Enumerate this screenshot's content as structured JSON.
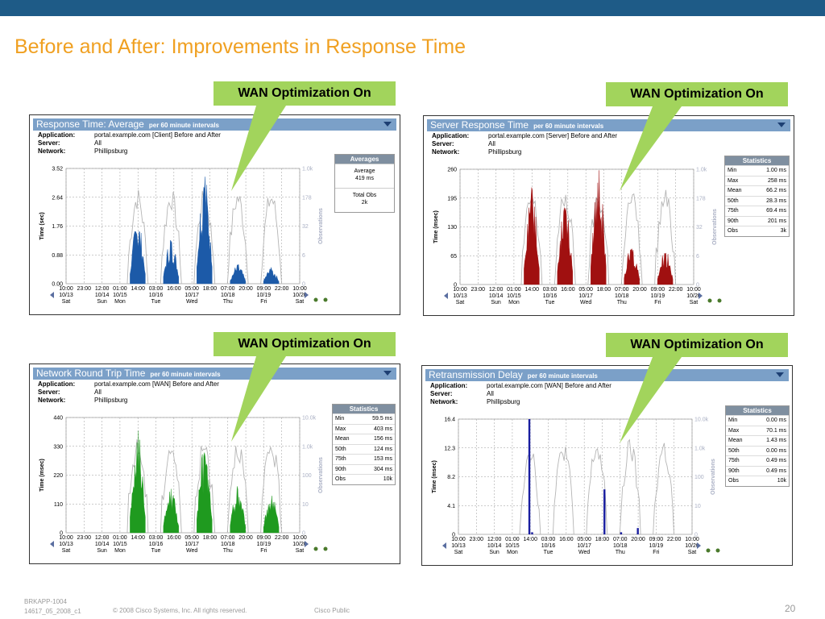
{
  "slide": {
    "title": "Before and After: Improvements in Response Time",
    "footer_code_line1": "BRKAPP-1004",
    "footer_code_line2": "14617_05_2008_c1",
    "footer_copyright": "© 2008 Cisco Systems, Inc. All rights reserved.",
    "footer_classification": "Cisco Public",
    "page_number": "20",
    "callout_text": "WAN Optimization On",
    "colors": {
      "topbar": "#1e5b87",
      "title": "#f0a021",
      "callout": "#a2d45c"
    }
  },
  "chart_data": [
    {
      "type": "area",
      "title": "Response Time: Average",
      "subtitle": "per 60 minute intervals",
      "meta": [
        {
          "key": "Application:",
          "value": "portal.example.com [Client] Before and After"
        },
        {
          "key": "Server:",
          "value": "All"
        },
        {
          "key": "Network:",
          "value": "Phillipsburg"
        }
      ],
      "ylabel": "Time (sec)",
      "y2label": "Observations",
      "yticks": [
        "3.52",
        "2.64",
        "1.76",
        "0.88",
        "0.00"
      ],
      "y2ticks": [
        "1.0k",
        "178",
        "32",
        "6",
        "0"
      ],
      "ylim": [
        0,
        3.52
      ],
      "x_tick_times": [
        "10:00",
        "23:00",
        "12:00",
        "01:00",
        "14:00",
        "03:00",
        "16:00",
        "05:00",
        "18:00",
        "07:00",
        "20:00",
        "09:00",
        "22:00",
        "10:00"
      ],
      "x_tick_dates": [
        "10/13",
        "",
        "10/14",
        "10/15",
        "",
        "10/16",
        "",
        "10/17",
        "",
        "10/18",
        "",
        "10/19",
        "",
        "10/20"
      ],
      "x_tick_days": [
        "Sat",
        "",
        "Sun",
        "Mon",
        "",
        "Tue",
        "",
        "Wed",
        "",
        "Thu",
        "",
        "Fri",
        "",
        "Sat"
      ],
      "series_color": "#1c5aa8",
      "peaks": [
        {
          "day": "10/15",
          "max": 2.0
        },
        {
          "day": "10/16",
          "max": 1.4
        },
        {
          "day": "10/17",
          "max": 3.4
        },
        {
          "day": "10/18",
          "max": 0.6
        },
        {
          "day": "10/19",
          "max": 0.5
        }
      ],
      "stats_title": "Averages",
      "averages": [
        {
          "label": "Average",
          "value": "419 ms"
        },
        {
          "label": "Total Obs",
          "value": "2k"
        }
      ]
    },
    {
      "type": "area",
      "title": "Server Response Time",
      "subtitle": "per 60 minute intervals",
      "meta": [
        {
          "key": "Application:",
          "value": "portal.example.com [Server] Before and After"
        },
        {
          "key": "Server:",
          "value": "All"
        },
        {
          "key": "Network:",
          "value": "Phillipsburg"
        }
      ],
      "ylabel": "Time (msec)",
      "y2label": "Observations",
      "yticks": [
        "260",
        "195",
        "130",
        "65",
        "0"
      ],
      "y2ticks": [
        "1.0k",
        "178",
        "32",
        "6",
        "0"
      ],
      "ylim": [
        0,
        260
      ],
      "x_tick_times": [
        "10:00",
        "23:00",
        "12:00",
        "01:00",
        "14:00",
        "03:00",
        "16:00",
        "05:00",
        "18:00",
        "07:00",
        "20:00",
        "09:00",
        "22:00",
        "10:00"
      ],
      "x_tick_dates": [
        "10/13",
        "",
        "10/14",
        "10/15",
        "",
        "10/16",
        "",
        "10/17",
        "",
        "10/18",
        "",
        "10/19",
        "",
        "10/20"
      ],
      "x_tick_days": [
        "Sat",
        "",
        "Sun",
        "Mon",
        "",
        "Tue",
        "",
        "Wed",
        "",
        "Thu",
        "",
        "Fri",
        "",
        "Sat"
      ],
      "series_color": "#a01010",
      "peaks": [
        {
          "day": "10/15",
          "max": 240
        },
        {
          "day": "10/16",
          "max": 190
        },
        {
          "day": "10/17",
          "max": 258
        },
        {
          "day": "10/18",
          "max": 90
        },
        {
          "day": "10/19",
          "max": 80
        }
      ],
      "stats_title": "Statistics",
      "stats": [
        {
          "label": "Min",
          "value": "1.00 ms"
        },
        {
          "label": "Max",
          "value": "258 ms"
        },
        {
          "label": "Mean",
          "value": "66.2 ms"
        },
        {
          "label": "50th",
          "value": "28.3 ms"
        },
        {
          "label": "75th",
          "value": "69.4 ms"
        },
        {
          "label": "90th",
          "value": "201 ms"
        },
        {
          "label": "Obs",
          "value": "3k"
        }
      ]
    },
    {
      "type": "area",
      "title": "Network Round Trip Time",
      "subtitle": "per 60 minute intervals",
      "meta": [
        {
          "key": "Application:",
          "value": "portal.example.com [WAN] Before and After"
        },
        {
          "key": "Server:",
          "value": "All"
        },
        {
          "key": "Network:",
          "value": "Phillipsburg"
        }
      ],
      "ylabel": "Time (msec)",
      "y2label": "Observations",
      "yticks": [
        "440",
        "330",
        "220",
        "110",
        "0"
      ],
      "y2ticks": [
        "10.0k",
        "1.0k",
        "100",
        "10",
        "0"
      ],
      "ylim": [
        0,
        440
      ],
      "x_tick_times": [
        "10:00",
        "23:00",
        "12:00",
        "01:00",
        "14:00",
        "03:00",
        "16:00",
        "05:00",
        "18:00",
        "07:00",
        "20:00",
        "09:00",
        "22:00",
        "10:00"
      ],
      "x_tick_dates": [
        "10/13",
        "",
        "10/14",
        "10/15",
        "",
        "10/16",
        "",
        "10/17",
        "",
        "10/18",
        "",
        "10/19",
        "",
        "10/20"
      ],
      "x_tick_days": [
        "Sat",
        "",
        "Sun",
        "Mon",
        "",
        "Tue",
        "",
        "Wed",
        "",
        "Thu",
        "",
        "Fri",
        "",
        "Sat"
      ],
      "series_color": "#1f9a1f",
      "peaks": [
        {
          "day": "10/15",
          "max": 400
        },
        {
          "day": "10/16",
          "max": 170
        },
        {
          "day": "10/17",
          "max": 330
        },
        {
          "day": "10/18",
          "max": 180
        },
        {
          "day": "10/19",
          "max": 150
        }
      ],
      "stats_title": "Statistics",
      "stats": [
        {
          "label": "Min",
          "value": "59.5 ms"
        },
        {
          "label": "Max",
          "value": "403 ms"
        },
        {
          "label": "Mean",
          "value": "156 ms"
        },
        {
          "label": "50th",
          "value": "124 ms"
        },
        {
          "label": "75th",
          "value": "153 ms"
        },
        {
          "label": "90th",
          "value": "304 ms"
        },
        {
          "label": "Obs",
          "value": "10k"
        }
      ]
    },
    {
      "type": "area",
      "title": "Retransmission Delay",
      "subtitle": "per 60 minute intervals",
      "meta": [
        {
          "key": "Application:",
          "value": "portal.example.com [WAN] Before and After"
        },
        {
          "key": "Server:",
          "value": "All"
        },
        {
          "key": "Network:",
          "value": "Phillipsburg"
        }
      ],
      "ylabel": "Time (msec)",
      "y2label": "Observations",
      "yticks": [
        "16.4",
        "12.3",
        "8.2",
        "4.1",
        "0"
      ],
      "y2ticks": [
        "10.0k",
        "1.0k",
        "100",
        "10",
        "0"
      ],
      "ylim": [
        0,
        16.4
      ],
      "x_tick_times": [
        "10:00",
        "23:00",
        "12:00",
        "01:00",
        "14:00",
        "03:00",
        "16:00",
        "05:00",
        "18:00",
        "07:00",
        "20:00",
        "09:00",
        "22:00",
        "10:00"
      ],
      "x_tick_dates": [
        "10/13",
        "",
        "10/14",
        "10/15",
        "",
        "10/16",
        "",
        "10/17",
        "",
        "10/18",
        "",
        "10/19",
        "",
        "10/20"
      ],
      "x_tick_days": [
        "Sat",
        "",
        "Sun",
        "Mon",
        "",
        "Tue",
        "",
        "Wed",
        "",
        "Thu",
        "",
        "Fri",
        "",
        "Sat"
      ],
      "series_color": "#1a1ea0",
      "spikes": [
        {
          "time": "10/15 13:00",
          "value": 16.4
        },
        {
          "time": "10/15 15:00",
          "value": 0.3
        },
        {
          "time": "10/17 19:00",
          "value": 6.4
        },
        {
          "time": "10/18 07:00",
          "value": 0.3
        },
        {
          "time": "10/18 19:00",
          "value": 0.9
        }
      ],
      "stats_title": "Statistics",
      "stats": [
        {
          "label": "Min",
          "value": "0.00 ms"
        },
        {
          "label": "Max",
          "value": "70.1 ms"
        },
        {
          "label": "Mean",
          "value": "1.43 ms"
        },
        {
          "label": "50th",
          "value": "0.00 ms"
        },
        {
          "label": "75th",
          "value": "0.49 ms"
        },
        {
          "label": "90th",
          "value": "0.49 ms"
        },
        {
          "label": "Obs",
          "value": "10k"
        }
      ]
    }
  ]
}
